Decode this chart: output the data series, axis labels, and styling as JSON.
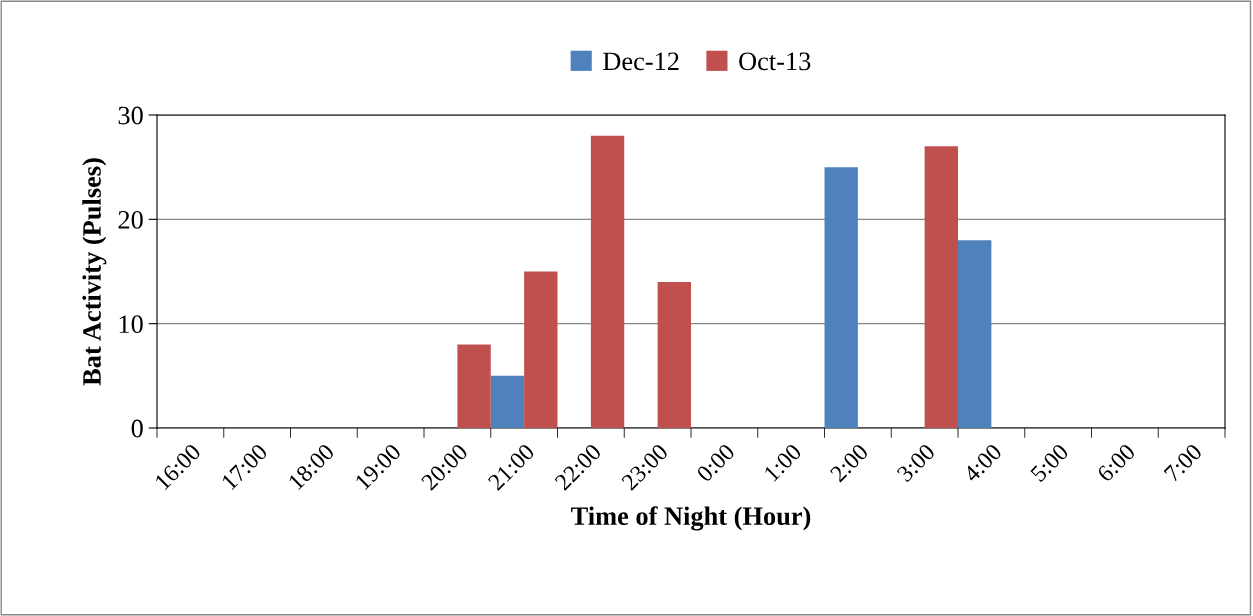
{
  "chart_data": {
    "type": "bar",
    "xlabel": "Time of Night (Hour)",
    "ylabel": "Bat Activity (Pulses)",
    "categories": [
      "16:00",
      "17:00",
      "18:00",
      "19:00",
      "20:00",
      "21:00",
      "22:00",
      "23:00",
      "0:00",
      "1:00",
      "2:00",
      "3:00",
      "4:00",
      "5:00",
      "6:00",
      "7:00"
    ],
    "series": [
      {
        "name": "Dec-12",
        "color": "#4f81bd",
        "values": [
          0,
          0,
          0,
          0,
          0,
          5,
          0,
          0,
          0,
          0,
          25,
          0,
          18,
          0,
          0,
          0
        ]
      },
      {
        "name": "Oct-13",
        "color": "#c0504d",
        "values": [
          0,
          0,
          0,
          0,
          8,
          15,
          28,
          14,
          0,
          0,
          0,
          27,
          0,
          0,
          0,
          0
        ]
      }
    ],
    "ylim": [
      0,
      30
    ],
    "yticks": [
      0,
      10,
      20,
      30
    ],
    "grid": "y",
    "legend": "top"
  }
}
